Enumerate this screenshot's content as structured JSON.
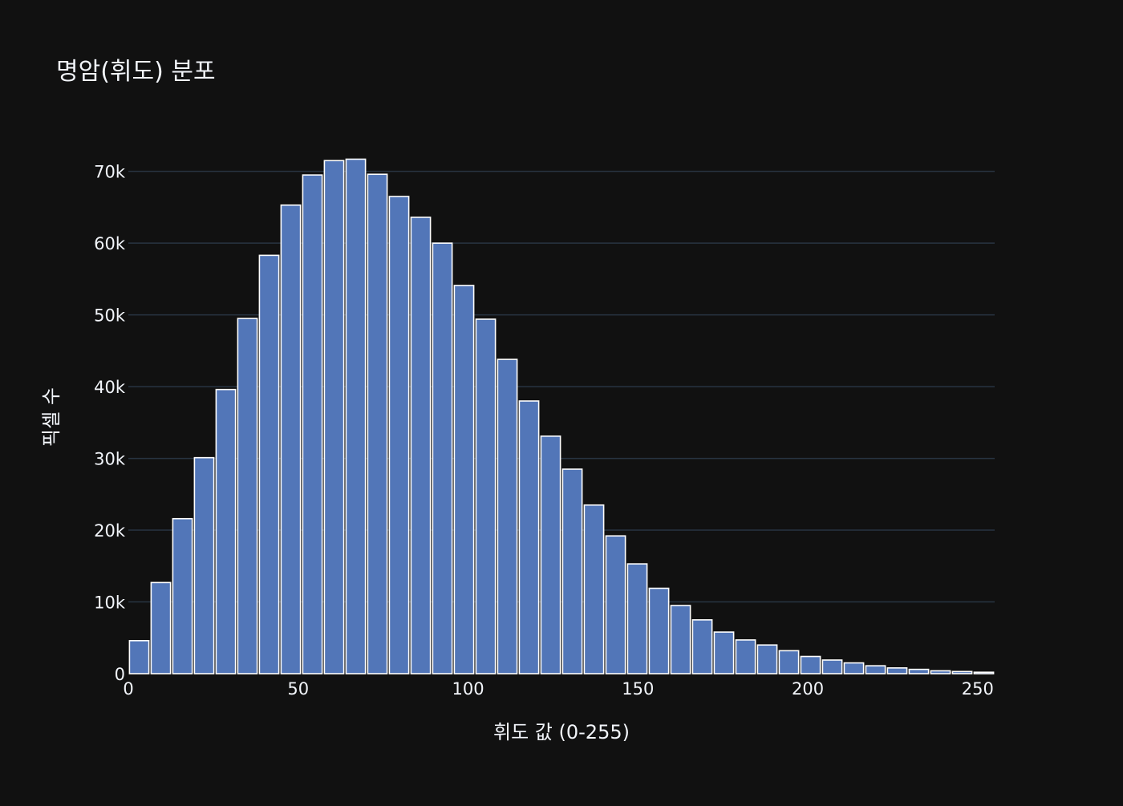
{
  "chart_data": {
    "type": "bar",
    "title": "명암(휘도) 분포",
    "xlabel": "휘도 값 (0-255)",
    "ylabel": "픽셀 수",
    "xlim": [
      0,
      255
    ],
    "ylim": [
      0,
      76000
    ],
    "bin_width": 6.375,
    "x_ticks": [
      0,
      50,
      100,
      150,
      200,
      250
    ],
    "x_tick_labels": [
      "0",
      "50",
      "100",
      "150",
      "200",
      "250"
    ],
    "y_ticks": [
      0,
      10000,
      20000,
      30000,
      40000,
      50000,
      60000,
      70000
    ],
    "y_tick_labels": [
      "0",
      "10k",
      "20k",
      "30k",
      "40k",
      "50k",
      "60k",
      "70k"
    ],
    "grid": true,
    "legend": "none",
    "colors": {
      "background": "#111111",
      "bar": "#5276b8",
      "bar_border": "#ffffff",
      "grid": "#283442",
      "text": "#f2f5fa"
    },
    "x": [
      3.19,
      9.56,
      15.94,
      22.31,
      28.69,
      35.06,
      41.44,
      47.81,
      54.19,
      60.56,
      66.94,
      73.31,
      79.69,
      86.06,
      92.44,
      98.81,
      105.19,
      111.56,
      117.94,
      124.31,
      130.69,
      137.06,
      143.44,
      149.81,
      156.19,
      162.56,
      168.94,
      175.31,
      181.69,
      188.06,
      194.44,
      200.81,
      207.19,
      213.56,
      219.94,
      226.31,
      232.69,
      239.06,
      245.44,
      251.81
    ],
    "values": [
      4600,
      12700,
      21600,
      30100,
      39600,
      49500,
      58300,
      65300,
      69500,
      71500,
      71700,
      69600,
      66500,
      63600,
      60000,
      54100,
      49400,
      43800,
      38000,
      33100,
      28500,
      23500,
      19200,
      15300,
      11900,
      9500,
      7500,
      5800,
      4700,
      4000,
      3200,
      2400,
      1900,
      1500,
      1100,
      800,
      600,
      400,
      300,
      200
    ]
  }
}
